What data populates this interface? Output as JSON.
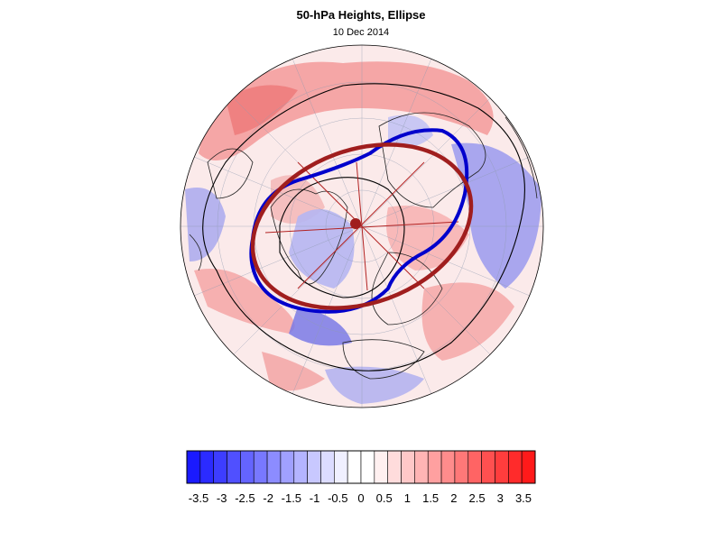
{
  "header": {
    "title": "50-hPa Heights, Ellipse",
    "date": "10 Dec 2014"
  },
  "colorbar": {
    "tick_labels": [
      "-3.5",
      "-3",
      "-2.5",
      "-2",
      "-1.5",
      "-1",
      "-0.5",
      "0",
      "0.5",
      "1",
      "1.5",
      "2",
      "2.5",
      "3",
      "3.5"
    ],
    "colors": [
      "#1a1aff",
      "#2b2bff",
      "#3d3dff",
      "#5050ff",
      "#6464ff",
      "#7878ff",
      "#8c8cff",
      "#a0a0ff",
      "#b4b4ff",
      "#c8c8ff",
      "#dcdcff",
      "#f0f0ff",
      "#ffffff",
      "#ffffff",
      "#fff0f0",
      "#ffdcdc",
      "#ffc8c8",
      "#ffb4b4",
      "#ffa0a0",
      "#ff8c8c",
      "#ff7878",
      "#ff6464",
      "#ff5050",
      "#ff3d3d",
      "#ff2b2b",
      "#ff1a1a"
    ]
  },
  "map": {
    "projection": "polar-stereographic",
    "palette": {
      "observed_contour": "#0000cc",
      "fitted_ellipse": "#a01e1e",
      "height_contour": "#000000"
    }
  }
}
